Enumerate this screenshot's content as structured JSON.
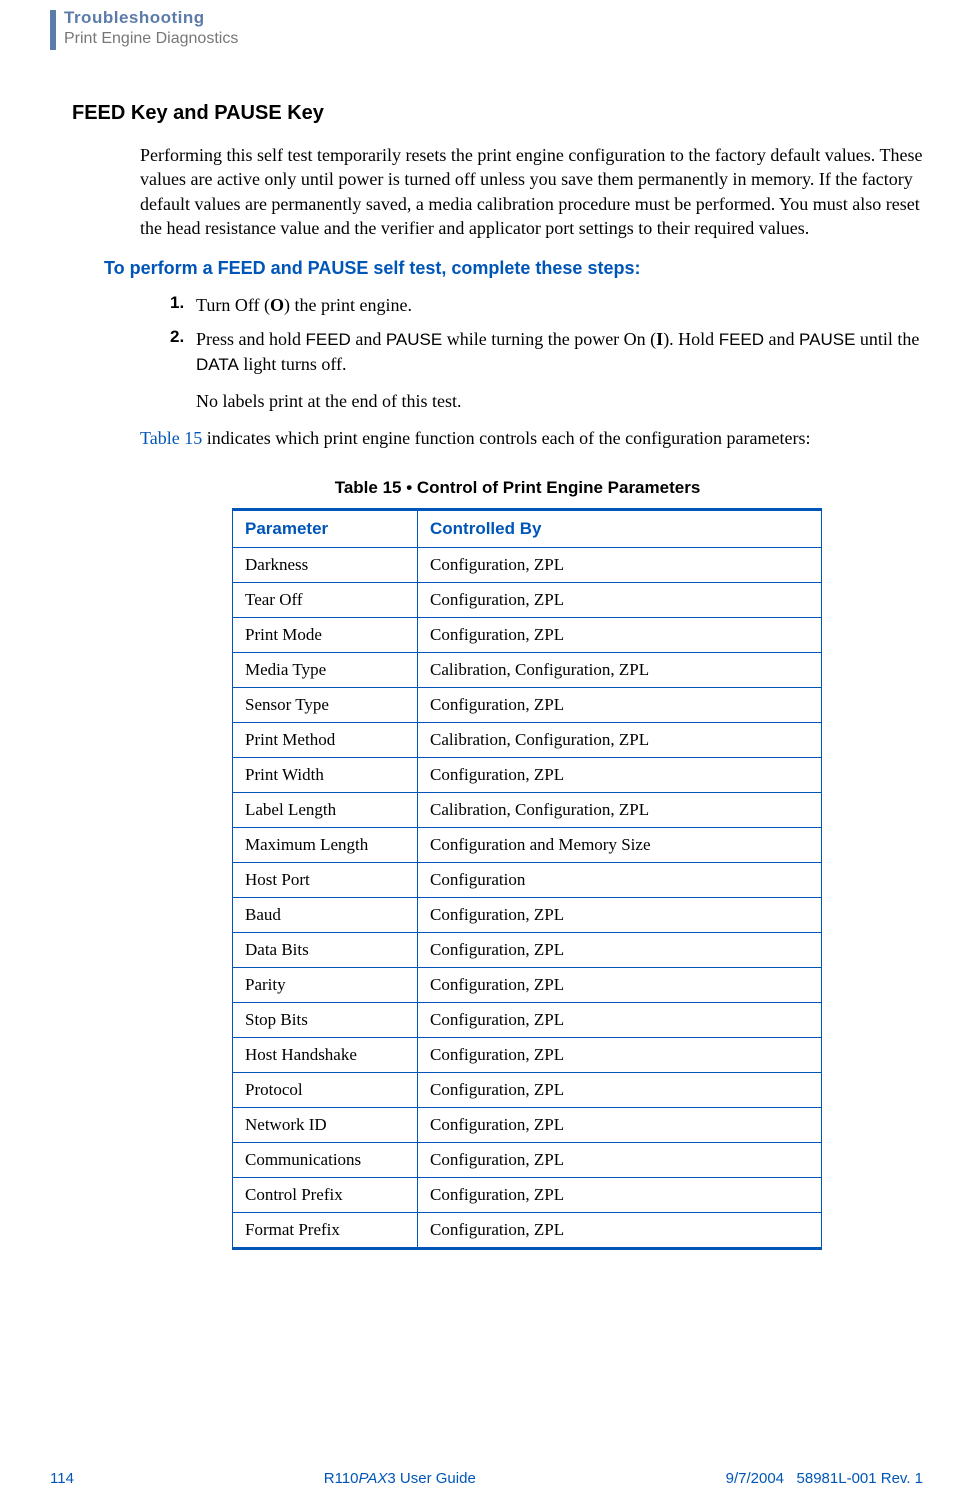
{
  "header": {
    "title": "Troubleshooting",
    "subtitle": "Print Engine Diagnostics"
  },
  "section": {
    "heading": "FEED Key and PAUSE Key",
    "paragraph": "Performing this self test temporarily resets the print engine configuration to the factory default values. These values are active only until power is turned off unless you save them permanently in memory. If the factory default values are permanently saved, a media calibration procedure must be performed. You must also reset the head resistance value and the verifier and applicator port settings to their required values.",
    "subheading": "To perform a FEED and PAUSE self test, complete these steps:",
    "steps": [
      {
        "number": "1.",
        "prefix": "Turn Off (",
        "bold1": "O",
        "suffix": ") the print engine."
      },
      {
        "number": "2.",
        "p1": "Press and hold ",
        "s1": "FEED",
        "p2": " and ",
        "s2": "PAUSE",
        "p3": " while turning the power On (",
        "b1": "I",
        "p4": "). Hold ",
        "s3": "FEED",
        "p5": " and ",
        "s4": "PAUSE",
        "p6": " until the ",
        "s5": "DATA",
        "p7": " light turns off."
      }
    ],
    "step_sub": "No labels print at the end of this test.",
    "ref_link": "Table 15",
    "ref_text": " indicates which print engine function controls each of the configuration parameters:"
  },
  "table": {
    "caption": "Table 15 • Control of Print Engine Parameters",
    "columns": [
      "Parameter",
      "Controlled By"
    ],
    "rows": [
      [
        "Darkness",
        "Configuration, ZPL"
      ],
      [
        "Tear Off",
        "Configuration, ZPL"
      ],
      [
        "Print Mode",
        "Configuration, ZPL"
      ],
      [
        "Media Type",
        "Calibration, Configuration, ZPL"
      ],
      [
        "Sensor Type",
        "Configuration, ZPL"
      ],
      [
        "Print Method",
        "Calibration, Configuration, ZPL"
      ],
      [
        "Print Width",
        "Configuration, ZPL"
      ],
      [
        "Label Length",
        "Calibration, Configuration, ZPL"
      ],
      [
        "Maximum Length",
        "Configuration and Memory Size"
      ],
      [
        "Host Port",
        "Configuration"
      ],
      [
        "Baud",
        "Configuration, ZPL"
      ],
      [
        "Data Bits",
        "Configuration, ZPL"
      ],
      [
        "Parity",
        "Configuration, ZPL"
      ],
      [
        "Stop Bits",
        "Configuration, ZPL"
      ],
      [
        "Host Handshake",
        "Configuration, ZPL"
      ],
      [
        "Protocol",
        "Configuration, ZPL"
      ],
      [
        "Network ID",
        "Configuration, ZPL"
      ],
      [
        "Communications",
        "Configuration, ZPL"
      ],
      [
        "Control Prefix",
        "Configuration, ZPL"
      ],
      [
        "Format Prefix",
        "Configuration, ZPL"
      ]
    ]
  },
  "footer": {
    "page_num": "114",
    "center_prefix": "R110",
    "center_italic": "PAX",
    "center_suffix": "3 User Guide",
    "date": "9/7/2004",
    "doc_id": "58981L-001 Rev. 1"
  },
  "colors": {
    "blue": "#0056b8",
    "header_blue": "#5b7ca8",
    "gray": "#777777"
  }
}
